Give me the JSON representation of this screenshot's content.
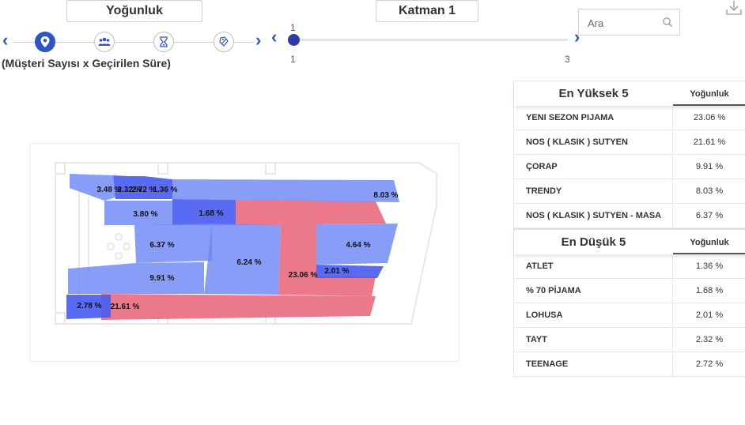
{
  "toolbar": {
    "metric_button": "Yoğunluk",
    "layer_button": "Katman 1",
    "metric_caption": "(Müşteri Sayısı x Geçirilen Süre)",
    "steps": [
      "location-pin-icon",
      "people-icon",
      "hourglass-icon",
      "tag-icon"
    ],
    "layer_slider": {
      "current": "1",
      "min_label": "1",
      "max_label": "3",
      "value": 1
    },
    "search": {
      "placeholder": "Ara",
      "value": ""
    }
  },
  "colors": {
    "accent": "#2f54c8",
    "knob": "#2e3aa8",
    "hot": "#e85c72",
    "cold": "#6c88f5",
    "cold_dark": "#4b5ef0"
  },
  "map": {
    "zones": [
      {
        "label": "3.48 %",
        "level": "cold"
      },
      {
        "label": "2.32 %",
        "level": "cold_dark"
      },
      {
        "label": "2.72 %",
        "level": "cold_dark"
      },
      {
        "label": "1.36 %",
        "level": "cold_dark"
      },
      {
        "label": "8.03 %",
        "level": "cold"
      },
      {
        "label": "3.80 %",
        "level": "cold"
      },
      {
        "label": "1.68 %",
        "level": "cold_dark"
      },
      {
        "label": "6.37 %",
        "level": "cold"
      },
      {
        "label": "6.24 %",
        "level": "cold"
      },
      {
        "label": "23.06 %",
        "level": "hot"
      },
      {
        "label": "4.64 %",
        "level": "cold"
      },
      {
        "label": "2.01 %",
        "level": "cold_dark"
      },
      {
        "label": "9.91 %",
        "level": "cold"
      },
      {
        "label": "2.78 %",
        "level": "cold_dark"
      },
      {
        "label": "21.61 %",
        "level": "hot"
      }
    ]
  },
  "top5": {
    "title": "En Yüksek 5",
    "column": "Yoğunluk",
    "rows": [
      {
        "name": "YENI SEZON PIJAMA",
        "value": "23.06 %"
      },
      {
        "name": "NOS ( KLASIK ) SUTYEN",
        "value": "21.61 %"
      },
      {
        "name": "ÇORAP",
        "value": "9.91 %"
      },
      {
        "name": "TRENDY",
        "value": "8.03 %"
      },
      {
        "name": "NOS ( KLASIK ) SUTYEN - MASA",
        "value": "6.37 %"
      }
    ]
  },
  "bottom5": {
    "title": "En Düşük 5",
    "column": "Yoğunluk",
    "rows": [
      {
        "name": "ATLET",
        "value": "1.36 %"
      },
      {
        "name": "% 70 PİJAMA",
        "value": "1.68 %"
      },
      {
        "name": "LOHUSA",
        "value": "2.01 %"
      },
      {
        "name": "TAYT",
        "value": "2.32 %"
      },
      {
        "name": "TEENAGE",
        "value": "2.72 %"
      }
    ]
  }
}
